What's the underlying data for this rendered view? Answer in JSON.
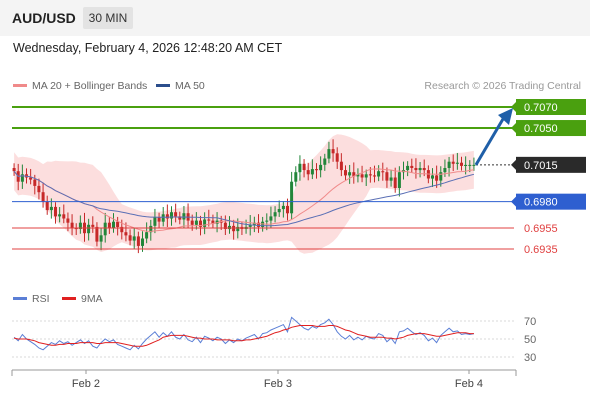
{
  "header": {
    "pair": "AUD/USD",
    "timeframe": "30 MIN"
  },
  "datetime": "Wednesday, February 4, 2026 12:48:20 AM CET",
  "legend": {
    "ma20": {
      "label": "MA 20 + Bollinger Bands",
      "color": "#f08a8a"
    },
    "ma50": {
      "label": "MA 50",
      "color": "#2b4e8c"
    },
    "credit": "Research © 2026 Trading Central"
  },
  "rsi_legend": {
    "rsi": {
      "label": "RSI",
      "color": "#5b7fd6"
    },
    "ma": {
      "label": "9MA",
      "color": "#e02020"
    }
  },
  "colors": {
    "up": "#22863a",
    "down": "#c62828",
    "band": "#fbd3d3",
    "ma20": "#f08a8a",
    "ma50": "#5a6fb5",
    "arrow": "#1f5fa8",
    "resistance": "#4aa00f",
    "support": "#2e5fd0",
    "support2": "#e04040",
    "current": "#2a2a2a"
  },
  "chart_data": [
    {
      "type": "candlestick",
      "title": "AUD/USD 30 MIN",
      "x_labels": [
        "Feb 2",
        "Feb 3",
        "Feb 4"
      ],
      "ylim": [
        0.6915,
        0.7085
      ],
      "levels": [
        {
          "value": 0.707,
          "label": "0.7070",
          "kind": "resistance"
        },
        {
          "value": 0.705,
          "label": "0.7050",
          "kind": "resistance"
        },
        {
          "value": 0.7015,
          "label": "0.7015",
          "kind": "current"
        },
        {
          "value": 0.698,
          "label": "0.6980",
          "kind": "pivot"
        },
        {
          "value": 0.6955,
          "label": "0.6955",
          "kind": "support"
        },
        {
          "value": 0.6935,
          "label": "0.6935",
          "kind": "support"
        }
      ],
      "forecast_arrow": {
        "from": 0.7015,
        "to": 0.707
      },
      "close": [
        0.7009,
        0.6999,
        0.7006,
        0.7003,
        0.7001,
        0.6995,
        0.6989,
        0.698,
        0.6972,
        0.6975,
        0.6966,
        0.6968,
        0.6964,
        0.696,
        0.6955,
        0.6954,
        0.696,
        0.695,
        0.6958,
        0.6956,
        0.6942,
        0.6948,
        0.696,
        0.6955,
        0.6961,
        0.6956,
        0.6951,
        0.6948,
        0.6943,
        0.6947,
        0.6938,
        0.6945,
        0.6951,
        0.6957,
        0.6965,
        0.6961,
        0.6968,
        0.6964,
        0.697,
        0.6966,
        0.6963,
        0.6969,
        0.6962,
        0.6958,
        0.6962,
        0.6956,
        0.6963,
        0.6962,
        0.6959,
        0.6962,
        0.696,
        0.6954,
        0.6957,
        0.6952,
        0.6956,
        0.6954,
        0.6956,
        0.6958,
        0.696,
        0.6956,
        0.6961,
        0.6962,
        0.6966,
        0.697,
        0.6973,
        0.6976,
        0.6969,
        0.6999,
        0.7008,
        0.7016,
        0.701,
        0.7006,
        0.7011,
        0.701,
        0.7015,
        0.7021,
        0.703,
        0.7026,
        0.7018,
        0.701,
        0.7005,
        0.7008,
        0.7004,
        0.7006,
        0.7003,
        0.7006,
        0.7005,
        0.7004,
        0.7009,
        0.7008,
        0.7,
        0.7003,
        0.6993,
        0.7008,
        0.701,
        0.7014,
        0.7012,
        0.701,
        0.7012,
        0.701,
        0.7002,
        0.7005,
        0.7,
        0.7008,
        0.7012,
        0.7018,
        0.7016,
        0.7017,
        0.7014,
        0.7015,
        0.7015,
        0.7015
      ]
    },
    {
      "type": "line",
      "title": "RSI",
      "ylim": [
        25,
        80
      ],
      "yticks": [
        70,
        50,
        30
      ],
      "series": [
        {
          "name": "RSI",
          "values": [
            52,
            48,
            55,
            50,
            47,
            44,
            40,
            38,
            42,
            46,
            44,
            48,
            45,
            47,
            43,
            46,
            49,
            45,
            48,
            42,
            40,
            46,
            50,
            47,
            49,
            44,
            42,
            40,
            38,
            43,
            39,
            45,
            50,
            54,
            58,
            52,
            57,
            53,
            58,
            52,
            50,
            55,
            49,
            47,
            52,
            46,
            53,
            51,
            48,
            52,
            50,
            45,
            49,
            46,
            50,
            48,
            51,
            53,
            55,
            50,
            56,
            57,
            60,
            62,
            64,
            66,
            58,
            74,
            70,
            66,
            62,
            60,
            64,
            62,
            66,
            68,
            72,
            66,
            58,
            53,
            50,
            54,
            49,
            52,
            49,
            53,
            51,
            50,
            56,
            54,
            47,
            51,
            45,
            58,
            59,
            62,
            58,
            55,
            57,
            54,
            48,
            51,
            46,
            54,
            58,
            62,
            58,
            59,
            55,
            56,
            55,
            56
          ]
        },
        {
          "name": "9MA",
          "values": [
            51,
            50,
            50,
            50,
            49,
            48,
            46,
            45,
            44,
            43,
            43,
            44,
            44,
            45,
            45,
            45,
            46,
            46,
            46,
            46,
            45,
            45,
            46,
            46,
            46,
            46,
            45,
            44,
            43,
            42,
            42,
            42,
            43,
            45,
            47,
            49,
            52,
            53,
            54,
            54,
            54,
            54,
            53,
            52,
            51,
            51,
            50,
            50,
            50,
            49,
            49,
            49,
            49,
            48,
            48,
            48,
            49,
            49,
            50,
            51,
            52,
            53,
            55,
            57,
            58,
            60,
            61,
            63,
            64,
            65,
            65,
            65,
            65,
            64,
            64,
            64,
            65,
            65,
            64,
            62,
            60,
            59,
            57,
            55,
            54,
            53,
            52,
            52,
            52,
            52,
            51,
            51,
            50,
            51,
            52,
            54,
            55,
            56,
            56,
            56,
            55,
            54,
            53,
            53,
            54,
            55,
            56,
            57,
            57,
            57,
            56,
            56
          ]
        }
      ]
    }
  ]
}
